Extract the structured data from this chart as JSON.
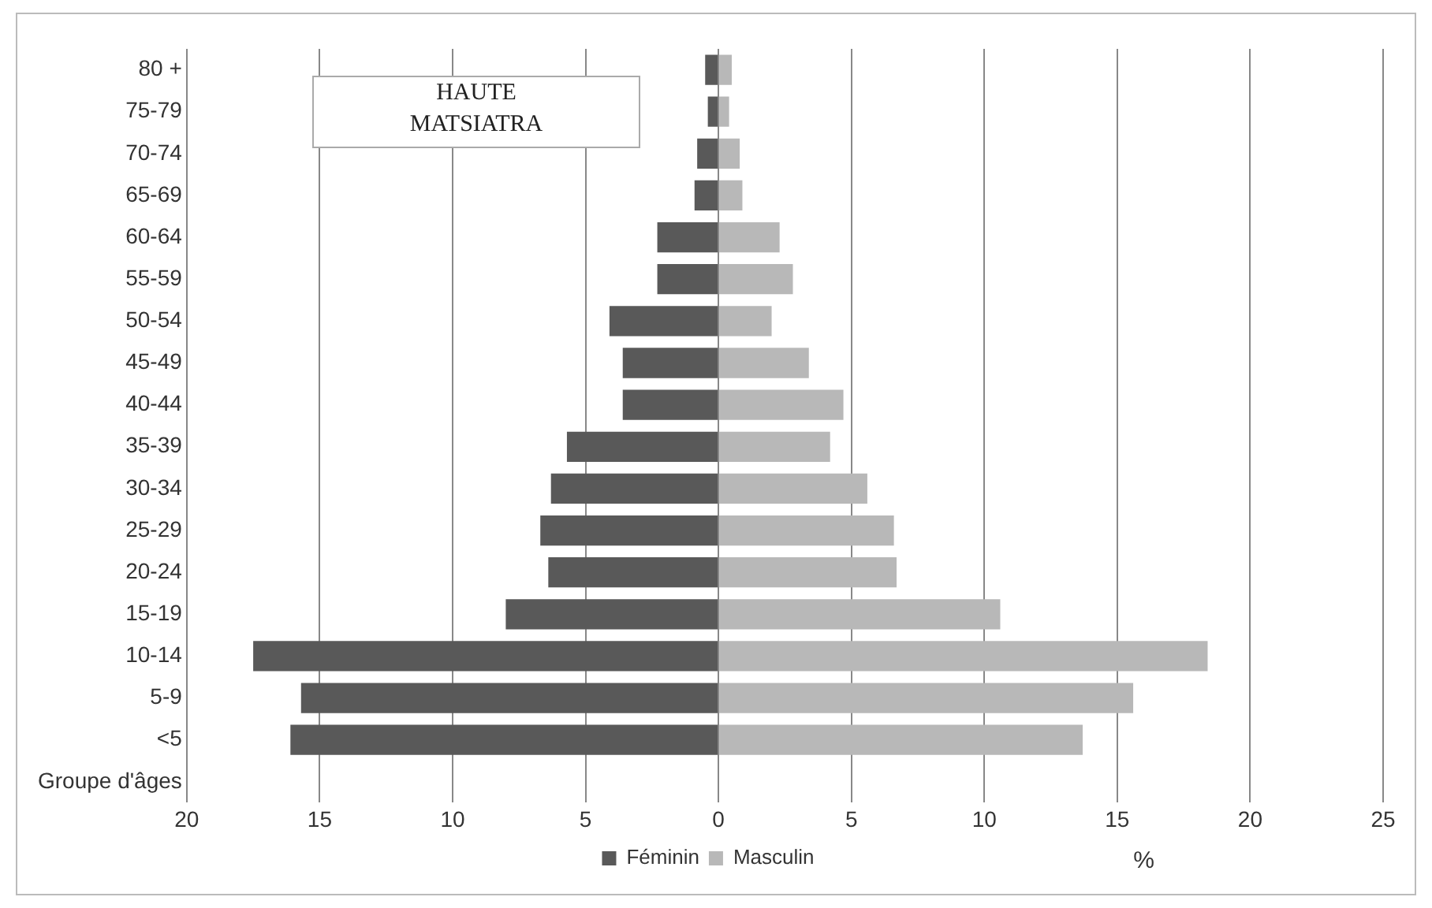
{
  "chart_data": {
    "type": "bar",
    "orientation": "horizontal",
    "stacked": true,
    "categories": [
      "80 +",
      "75-79",
      "70-74",
      "65-69",
      "60-64",
      "55-59",
      "50-54",
      "45-49",
      "40-44",
      "35-39",
      "30-34",
      "25-29",
      "20-24",
      "15-19",
      "10-14",
      "5-9",
      "<5",
      "Groupe d'âges"
    ],
    "series": [
      {
        "name": "Féminin",
        "color": "#595959",
        "values": [
          -0.5,
          -0.4,
          -0.8,
          -0.9,
          -2.3,
          -2.3,
          -4.1,
          -3.6,
          -3.6,
          -5.7,
          -6.3,
          -6.7,
          -6.4,
          -8.0,
          -17.5,
          -15.7,
          -16.1,
          null
        ]
      },
      {
        "name": "Masculin",
        "color": "#b8b8b8",
        "values": [
          0.5,
          0.4,
          0.8,
          0.9,
          2.3,
          2.8,
          2.0,
          3.4,
          4.7,
          4.2,
          5.6,
          6.6,
          6.7,
          10.6,
          18.4,
          15.6,
          13.7,
          null
        ]
      }
    ],
    "xlim": [
      -20,
      25
    ],
    "xticks": [
      {
        "value": -20,
        "label": "20"
      },
      {
        "value": -15,
        "label": "15"
      },
      {
        "value": -10,
        "label": "10"
      },
      {
        "value": -5,
        "label": "5"
      },
      0,
      5,
      10,
      15,
      20,
      25
    ],
    "xlabel": "%",
    "annotations": [
      "HAUTE\nMATSIATRA"
    ],
    "grid": "x",
    "legend": "bottom"
  }
}
